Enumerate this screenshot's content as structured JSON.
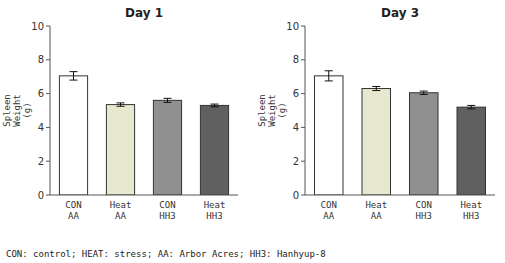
{
  "chart_data": [
    {
      "type": "bar",
      "title": "Day 1",
      "categories": [
        "CON\nAA",
        "Heat\nAA",
        "CON\nHH3",
        "Heat\nHH3"
      ],
      "values": [
        7.05,
        5.35,
        5.6,
        5.3
      ],
      "errors": [
        0.25,
        0.1,
        0.12,
        0.08
      ],
      "colors": [
        "#ffffff",
        "#e8e8d0",
        "#909090",
        "#606060"
      ],
      "ylabel": "Spleen\nWeight\n(g)",
      "ylim": [
        0,
        10
      ],
      "yticks": [
        0,
        2,
        4,
        6,
        8,
        10
      ],
      "caption": "CON: control; HEAT: stress; AA: Arbor Acres; HH3: Hanhyup-8"
    },
    {
      "type": "bar",
      "title": "Day 3",
      "categories": [
        "CON\nAA",
        "Heat\nAA",
        "CON\nHH3",
        "Heat\nHH3"
      ],
      "values": [
        7.05,
        6.3,
        6.05,
        5.2
      ],
      "errors": [
        0.3,
        0.12,
        0.1,
        0.1
      ],
      "colors": [
        "#ffffff",
        "#e8e8d0",
        "#909090",
        "#606060"
      ],
      "ylabel": "Spleen\nWeight\n(g)",
      "ylim": [
        0,
        10
      ],
      "yticks": [
        0,
        2,
        4,
        6,
        8,
        10
      ]
    }
  ]
}
